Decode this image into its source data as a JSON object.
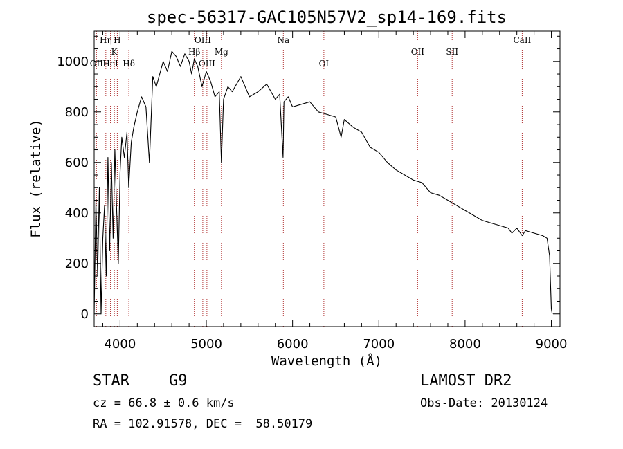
{
  "chart_data": {
    "type": "line",
    "title": "spec-56317-GAC105N57V2_sp14-169.fits",
    "xlabel": "Wavelength (Å)",
    "ylabel": "Flux (relative)",
    "xlim": [
      3700,
      9100
    ],
    "ylim": [
      -50,
      1120
    ],
    "x_ticks": [
      4000,
      5000,
      6000,
      7000,
      8000,
      9000
    ],
    "y_ticks": [
      0,
      200,
      400,
      600,
      800,
      1000
    ],
    "grid": false,
    "legend": "none",
    "series": [
      {
        "x": [
          3700,
          3720,
          3740,
          3760,
          3780,
          3800,
          3820,
          3840,
          3860,
          3880,
          3900,
          3920,
          3940,
          3960,
          3980,
          4000,
          4020,
          4050,
          4080,
          4100,
          4130,
          4160,
          4200,
          4250,
          4300,
          4340,
          4380,
          4420,
          4460,
          4500,
          4550,
          4600,
          4650,
          4700,
          4750,
          4800,
          4830,
          4861,
          4900,
          4950,
          5000,
          5050,
          5100,
          5150,
          5175,
          5200,
          5250,
          5300,
          5400,
          5500,
          5600,
          5700,
          5800,
          5850,
          5890,
          5900,
          5950,
          6000,
          6100,
          6200,
          6300,
          6400,
          6500,
          6563,
          6600,
          6700,
          6800,
          6900,
          7000,
          7100,
          7200,
          7300,
          7400,
          7500,
          7550,
          7600,
          7700,
          7800,
          7900,
          8000,
          8100,
          8200,
          8300,
          8400,
          8500,
          8542,
          8600,
          8662,
          8700,
          8800,
          8900,
          8950,
          8980,
          9000,
          9010
        ],
        "y": [
          0,
          450,
          150,
          500,
          0,
          300,
          430,
          150,
          620,
          250,
          600,
          300,
          650,
          420,
          200,
          560,
          700,
          620,
          720,
          500,
          680,
          740,
          800,
          860,
          820,
          600,
          940,
          900,
          950,
          1000,
          960,
          1040,
          1020,
          980,
          1030,
          1000,
          950,
          1010,
          980,
          900,
          960,
          920,
          860,
          880,
          600,
          850,
          900,
          880,
          940,
          860,
          880,
          910,
          850,
          870,
          620,
          840,
          860,
          820,
          830,
          840,
          800,
          790,
          780,
          700,
          770,
          740,
          720,
          660,
          640,
          600,
          570,
          550,
          530,
          520,
          500,
          480,
          470,
          450,
          430,
          410,
          390,
          370,
          360,
          350,
          340,
          320,
          340,
          310,
          330,
          320,
          310,
          300,
          230,
          20,
          0
        ]
      }
    ],
    "lines": [
      {
        "x": 3727,
        "label": "OII",
        "row": 3
      },
      {
        "x": 3835,
        "label": "Hη",
        "row": 1
      },
      {
        "x": 3889,
        "label": "HeI",
        "row": 3
      },
      {
        "x": 3934,
        "label": "K",
        "row": 2
      },
      {
        "x": 3968,
        "label": "H",
        "row": 1
      },
      {
        "x": 4102,
        "label": "Hδ",
        "row": 3
      },
      {
        "x": 4861,
        "label": "Hβ",
        "row": 2
      },
      {
        "x": 4959,
        "label": "OIII",
        "row": 1
      },
      {
        "x": 5007,
        "label": "OIII",
        "row": 3
      },
      {
        "x": 5175,
        "label": "Mg",
        "row": 2
      },
      {
        "x": 5893,
        "label": "Na",
        "row": 1
      },
      {
        "x": 6363,
        "label": "OI",
        "row": 3
      },
      {
        "x": 7450,
        "label": "OII",
        "row": 2
      },
      {
        "x": 7850,
        "label": "SII",
        "row": 2
      },
      {
        "x": 8662,
        "label": "CaII",
        "row": 1
      }
    ]
  },
  "info": {
    "class": "STAR",
    "subclass": "G9",
    "cz": "cz = 66.8 ± 0.6 km/s",
    "coords": "RA = 102.91578, DEC =  58.50179",
    "survey": "LAMOST DR2",
    "obs_date": "Obs-Date: 20130124"
  }
}
